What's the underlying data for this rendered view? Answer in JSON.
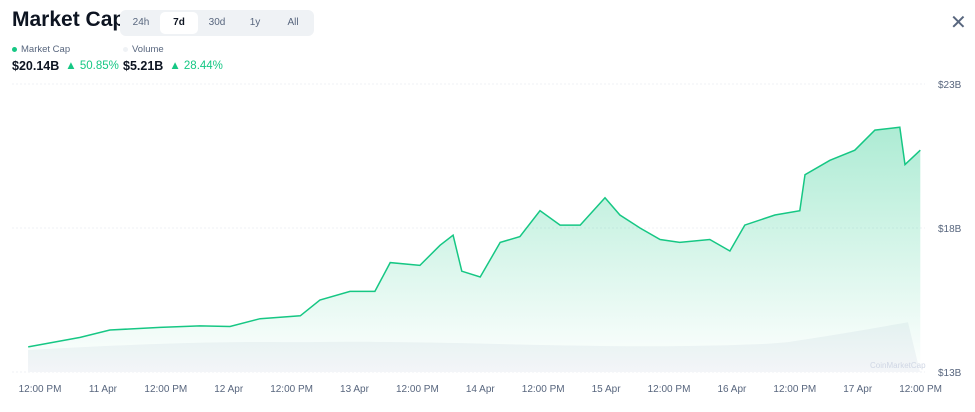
{
  "header": {
    "title": "Market Cap",
    "tabs": [
      "24h",
      "7d",
      "30d",
      "1y",
      "All"
    ],
    "active_tab": "7d",
    "close_icon": "close-icon"
  },
  "legend": {
    "market_cap": {
      "label": "Market Cap",
      "value": "$20.14B",
      "change": "50.85%",
      "color": "#16c784"
    },
    "volume": {
      "label": "Volume",
      "value": "$5.21B",
      "change": "28.44%",
      "color": "#eff2f5"
    }
  },
  "watermark": "CoinMarketCap",
  "chart_data": {
    "type": "area",
    "y_ticks": [
      "$23B",
      "$18B",
      "$13B"
    ],
    "ylim": [
      13,
      23
    ],
    "y_unit": "B USD",
    "x_ticks": [
      "12:00 PM",
      "11 Apr",
      "12:00 PM",
      "12 Apr",
      "12:00 PM",
      "13 Apr",
      "12:00 PM",
      "14 Apr",
      "12:00 PM",
      "15 Apr",
      "12:00 PM",
      "16 Apr",
      "12:00 PM",
      "17 Apr",
      "12:00 PM"
    ],
    "grid": true,
    "series": [
      {
        "name": "Market Cap",
        "color": "#16c784",
        "x": [
          "10 Apr 09:45",
          "10 Apr 19:40",
          "11 Apr 01:20",
          "11 Apr 10:55",
          "11 Apr 18:30",
          "12 Apr 00:15",
          "12 Apr 06:00",
          "12 Apr 13:40",
          "12 Apr 17:25",
          "12 Apr 23:10",
          "13 Apr 03:55",
          "13 Apr 06:50",
          "13 Apr 12:30",
          "13 Apr 16:20",
          "13 Apr 18:50",
          "13 Apr 20:30",
          "14 Apr 00:00",
          "14 Apr 03:50",
          "14 Apr 07:35",
          "14 Apr 11:25",
          "14 Apr 15:15",
          "14 Apr 19:05",
          "14 Apr 23:50",
          "15 Apr 02:40",
          "15 Apr 06:30",
          "15 Apr 10:20",
          "15 Apr 14:05",
          "15 Apr 19:50",
          "15 Apr 23:40",
          "16 Apr 02:30",
          "16 Apr 08:15",
          "16 Apr 13:00",
          "16 Apr 14:00",
          "16 Apr 18:45",
          "16 Apr 23:30",
          "17 Apr 03:20",
          "17 Apr 08:05",
          "17 Apr 09:05",
          "17 Apr 12:00"
        ],
        "values": [
          13.87,
          14.2,
          14.46,
          14.55,
          14.6,
          14.58,
          14.85,
          14.95,
          15.5,
          15.8,
          15.8,
          16.8,
          16.7,
          17.4,
          17.75,
          16.5,
          16.3,
          17.5,
          17.7,
          18.6,
          18.1,
          18.1,
          19.05,
          18.45,
          18.0,
          17.6,
          17.5,
          17.6,
          17.2,
          18.1,
          18.45,
          18.6,
          19.85,
          20.35,
          20.7,
          21.4,
          21.5,
          20.2,
          20.7
        ]
      }
    ]
  }
}
